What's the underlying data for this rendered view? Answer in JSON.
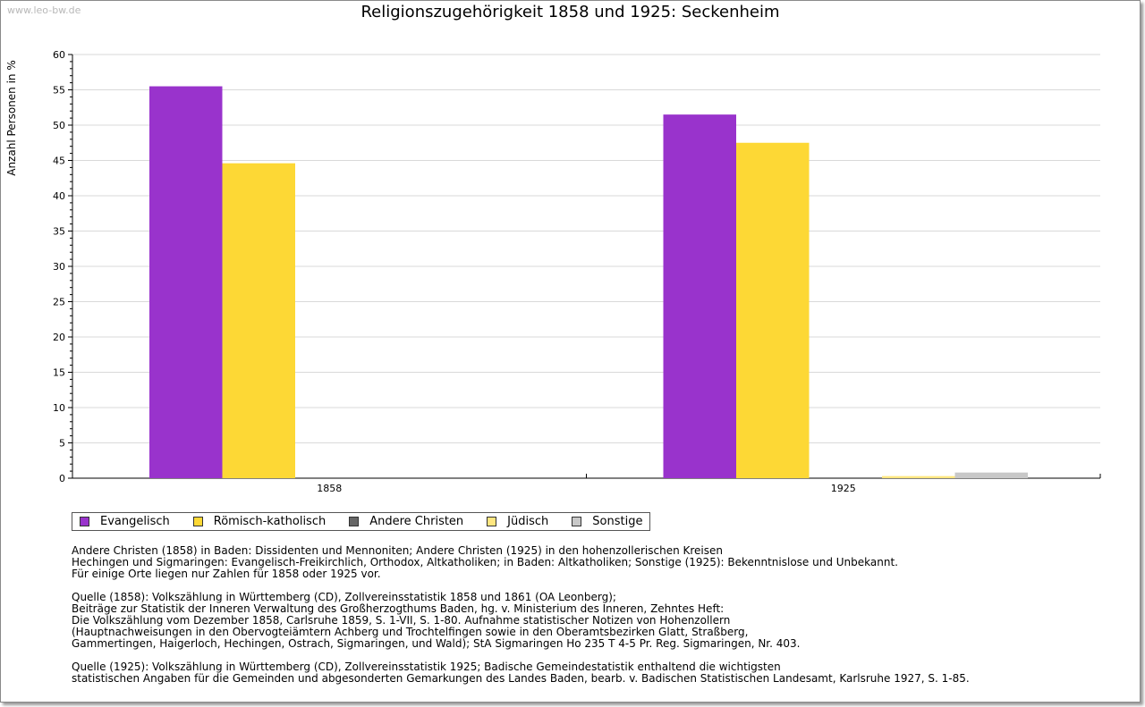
{
  "watermark": "www.leo-bw.de",
  "chart_data": {
    "type": "bar",
    "title": "Religionszugehörigkeit 1858 und 1925: Seckenheim",
    "xlabel": "",
    "ylabel": "Anzahl Personen in %",
    "ylim": [
      0,
      60
    ],
    "yticks": [
      0,
      5,
      10,
      15,
      20,
      25,
      30,
      35,
      40,
      45,
      50,
      55,
      60
    ],
    "grid": true,
    "categories": [
      "1858",
      "1925"
    ],
    "series": [
      {
        "name": "Evangelisch",
        "color": "#9933cc",
        "values": [
          55.5,
          51.5
        ]
      },
      {
        "name": "Römisch-katholisch",
        "color": "#fdd835",
        "values": [
          44.6,
          47.5
        ]
      },
      {
        "name": "Andere Christen",
        "color": "#666666",
        "values": [
          0,
          0
        ]
      },
      {
        "name": "Jüdisch",
        "color": "#ffe680",
        "values": [
          0,
          0.3
        ]
      },
      {
        "name": "Sonstige",
        "color": "#c8c8c8",
        "values": [
          0,
          0.8
        ]
      }
    ]
  },
  "notes": [
    [
      "Andere Christen (1858) in Baden: Dissidenten und Mennoniten; Andere Christen (1925) in den hohenzollerischen Kreisen",
      "Hechingen und Sigmaringen: Evangelisch-Freikirchlich, Orthodox, Altkatholiken; in Baden: Altkatholiken; Sonstige (1925): Bekenntnislose und Unbekannt.",
      "Für einige Orte liegen nur Zahlen für 1858 oder 1925 vor."
    ],
    [
      "Quelle (1858): Volkszählung in Württemberg (CD), Zollvereinsstatistik 1858 und 1861 (OA Leonberg);",
      "Beiträge zur Statistik der Inneren Verwaltung des Großherzogthums Baden, hg. v. Ministerium des Inneren, Zehntes Heft:",
      "Die Volkszählung vom Dezember 1858, Carlsruhe 1859, S. 1-VII, S. 1-80. Aufnahme statistischer Notizen von Hohenzollern",
      "(Hauptnachweisungen in den Obervogteiämtern Achberg und Trochtelfingen sowie in den Oberamtsbezirken Glatt, Straßberg,",
      "Gammertingen, Haigerloch, Hechingen, Ostrach, Sigmaringen, und Wald); StA Sigmaringen Ho 235 T 4-5 Pr. Reg. Sigmaringen, Nr. 403."
    ],
    [
      "Quelle (1925): Volkszählung in Württemberg (CD), Zollvereinsstatistik 1925; Badische Gemeindestatistik enthaltend die wichtigsten",
      "statistischen Angaben für die Gemeinden und abgesonderten Gemarkungen des Landes Baden, bearb. v. Badischen Statistischen Landesamt, Karlsruhe 1927, S. 1-85."
    ]
  ]
}
